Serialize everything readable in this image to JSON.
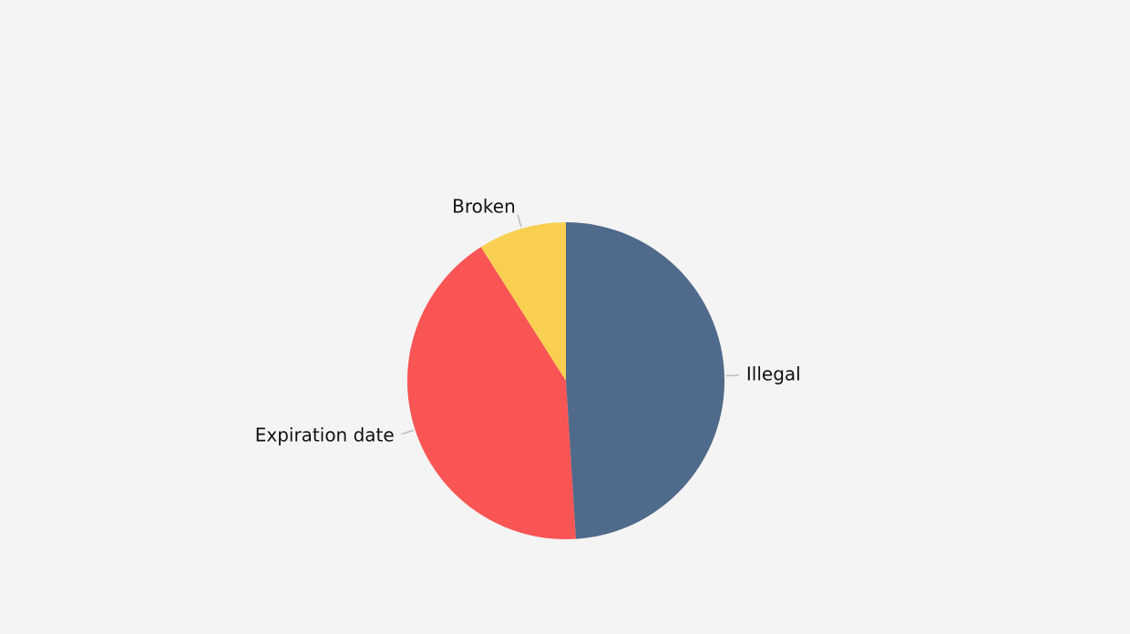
{
  "chart_data": {
    "type": "pie",
    "categories": [
      "Illegal",
      "Expiration date",
      "Broken"
    ],
    "values": [
      49,
      42,
      9
    ],
    "colors": [
      "#4f6a8a",
      "#f95555",
      "#f9cf52"
    ]
  }
}
